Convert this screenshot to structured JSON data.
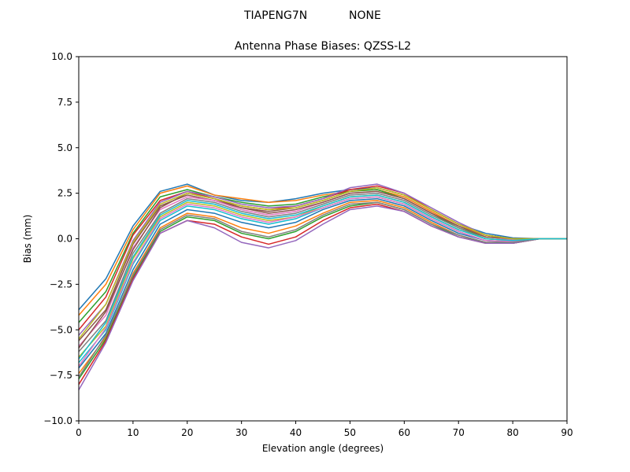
{
  "chart_data": {
    "type": "line",
    "suptitle_left": "TIAPENG7N",
    "suptitle_right": "NONE",
    "title": "Antenna Phase Biases: QZSS-L2",
    "xlabel": "Elevation angle (degrees)",
    "ylabel": "Bias (mm)",
    "xlim": [
      0,
      90
    ],
    "ylim": [
      -10,
      10
    ],
    "x_ticks": [
      0,
      10,
      20,
      30,
      40,
      50,
      60,
      70,
      80,
      90
    ],
    "y_ticks": [
      -10.0,
      -7.5,
      -5.0,
      -2.5,
      0.0,
      2.5,
      5.0,
      7.5,
      10.0
    ],
    "y_tick_labels": [
      "−10.0",
      "−7.5",
      "−5.0",
      "−2.5",
      "0.0",
      "2.5",
      "5.0",
      "7.5",
      "10.0"
    ],
    "grid": false,
    "legend": "none",
    "x": [
      0,
      5,
      10,
      15,
      20,
      25,
      30,
      35,
      40,
      45,
      50,
      55,
      60,
      65,
      70,
      75,
      80,
      85,
      90
    ],
    "palette": [
      "#1f77b4",
      "#ff7f0e",
      "#2ca02c",
      "#d62728",
      "#9467bd",
      "#8c564b",
      "#e377c2",
      "#7f7f7f",
      "#bcbd22",
      "#17becf"
    ],
    "series": [
      {
        "values": [
          -3.9,
          -2.2,
          0.7,
          2.6,
          3.0,
          2.4,
          2.1,
          2.0,
          2.2,
          2.5,
          2.7,
          2.8,
          2.4,
          1.6,
          0.8,
          0.3,
          0.05,
          0.0,
          0.0
        ]
      },
      {
        "values": [
          -4.2,
          -2.5,
          0.5,
          2.5,
          2.9,
          2.4,
          2.2,
          2.0,
          2.1,
          2.4,
          2.6,
          2.7,
          2.3,
          1.5,
          0.7,
          0.2,
          0.0,
          0.0,
          0.0
        ]
      },
      {
        "values": [
          -4.6,
          -2.9,
          0.3,
          2.3,
          2.7,
          2.3,
          2.0,
          1.8,
          1.9,
          2.3,
          2.6,
          2.7,
          2.2,
          1.4,
          0.6,
          0.1,
          0.0,
          0.0,
          0.0
        ]
      },
      {
        "values": [
          -5.0,
          -3.2,
          0.2,
          2.1,
          2.6,
          2.2,
          1.8,
          1.6,
          1.8,
          2.2,
          2.7,
          2.9,
          2.5,
          1.6,
          0.8,
          0.2,
          0.0,
          0.0,
          0.0
        ]
      },
      {
        "values": [
          -5.3,
          -3.6,
          -0.1,
          2.0,
          2.6,
          2.3,
          1.9,
          1.7,
          1.8,
          2.2,
          2.8,
          3.0,
          2.5,
          1.7,
          0.9,
          0.2,
          0.0,
          0.0,
          0.0
        ]
      },
      {
        "values": [
          -5.6,
          -3.9,
          -0.3,
          1.8,
          2.4,
          2.1,
          1.7,
          1.5,
          1.7,
          2.1,
          2.6,
          2.8,
          2.4,
          1.6,
          0.8,
          0.2,
          0.0,
          0.0,
          0.0
        ]
      },
      {
        "values": [
          -5.9,
          -4.2,
          -0.5,
          1.6,
          2.3,
          2.1,
          1.6,
          1.3,
          1.5,
          2.0,
          2.5,
          2.6,
          2.2,
          1.4,
          0.7,
          0.1,
          -0.05,
          0.0,
          0.0
        ]
      },
      {
        "values": [
          -6.2,
          -4.5,
          -0.8,
          1.4,
          2.2,
          2.0,
          1.5,
          1.2,
          1.4,
          1.9,
          2.4,
          2.5,
          2.1,
          1.3,
          0.6,
          0.0,
          -0.1,
          0.0,
          0.0
        ]
      },
      {
        "values": [
          -6.5,
          -4.8,
          -1.1,
          1.2,
          2.0,
          1.8,
          1.3,
          1.0,
          1.2,
          1.8,
          2.3,
          2.4,
          2.0,
          1.2,
          0.5,
          0.0,
          -0.1,
          0.0,
          0.0
        ]
      },
      {
        "values": [
          -6.8,
          -5.0,
          -1.4,
          1.0,
          1.8,
          1.6,
          1.1,
          0.8,
          1.1,
          1.7,
          2.2,
          2.3,
          1.9,
          1.1,
          0.4,
          -0.1,
          -0.15,
          0.0,
          0.0
        ]
      },
      {
        "values": [
          -7.1,
          -5.2,
          -1.7,
          0.8,
          1.6,
          1.4,
          0.9,
          0.6,
          0.9,
          1.6,
          2.1,
          2.2,
          1.8,
          1.0,
          0.3,
          -0.1,
          -0.2,
          0.0,
          0.0
        ]
      },
      {
        "values": [
          -7.4,
          -5.4,
          -1.9,
          0.6,
          1.4,
          1.2,
          0.6,
          0.3,
          0.7,
          1.4,
          2.0,
          2.1,
          1.7,
          0.9,
          0.2,
          -0.2,
          -0.2,
          0.0,
          0.0
        ]
      },
      {
        "values": [
          -7.7,
          -5.5,
          -2.1,
          0.4,
          1.2,
          1.0,
          0.3,
          0.0,
          0.4,
          1.2,
          1.8,
          2.0,
          1.6,
          0.8,
          0.1,
          -0.2,
          -0.25,
          0.0,
          0.0
        ]
      },
      {
        "values": [
          -8.0,
          -5.6,
          -2.2,
          0.3,
          1.0,
          0.8,
          0.1,
          -0.3,
          0.1,
          1.0,
          1.7,
          1.9,
          1.5,
          0.7,
          0.1,
          -0.25,
          -0.25,
          0.0,
          0.0
        ]
      },
      {
        "values": [
          -8.3,
          -5.7,
          -2.3,
          0.3,
          1.0,
          0.6,
          -0.2,
          -0.5,
          -0.1,
          0.8,
          1.6,
          1.8,
          1.5,
          0.7,
          0.1,
          -0.25,
          -0.25,
          0.0,
          0.0
        ]
      },
      {
        "values": [
          -6.0,
          -4.0,
          -0.6,
          1.7,
          2.5,
          2.2,
          1.7,
          1.4,
          1.6,
          2.0,
          2.5,
          2.6,
          2.2,
          1.4,
          0.7,
          0.1,
          0.0,
          0.0,
          0.0
        ]
      },
      {
        "values": [
          -7.0,
          -4.9,
          -1.3,
          1.1,
          1.9,
          1.7,
          1.2,
          0.9,
          1.2,
          1.7,
          2.2,
          2.3,
          1.9,
          1.1,
          0.4,
          -0.1,
          -0.15,
          0.0,
          0.0
        ]
      },
      {
        "values": [
          -7.6,
          -5.3,
          -2.0,
          0.5,
          1.3,
          1.1,
          0.4,
          0.1,
          0.5,
          1.3,
          1.9,
          2.0,
          1.6,
          0.8,
          0.2,
          -0.2,
          -0.2,
          0.0,
          0.0
        ]
      },
      {
        "values": [
          -5.5,
          -3.6,
          -0.2,
          1.9,
          2.5,
          2.2,
          1.8,
          1.6,
          1.7,
          2.1,
          2.6,
          2.8,
          2.4,
          1.6,
          0.8,
          0.2,
          0.0,
          0.0,
          0.0
        ]
      },
      {
        "values": [
          -6.6,
          -4.6,
          -1.0,
          1.3,
          2.1,
          1.9,
          1.4,
          1.1,
          1.3,
          1.8,
          2.3,
          2.4,
          2.0,
          1.2,
          0.5,
          0.0,
          -0.1,
          0.0,
          0.0
        ]
      }
    ]
  }
}
